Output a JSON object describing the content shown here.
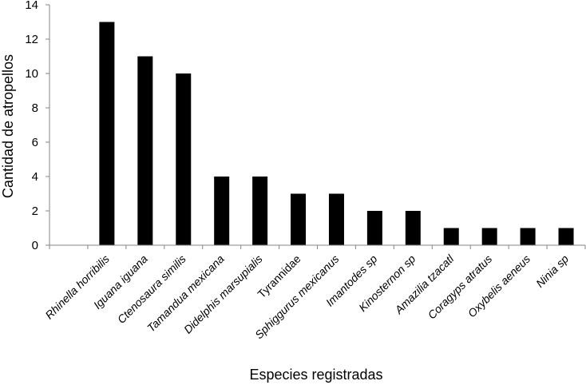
{
  "chart_data": {
    "type": "bar",
    "xlabel": "Especies registradas",
    "ylabel": "Cantidad de atropellos",
    "ylim": [
      0,
      14
    ],
    "yticks": [
      0,
      2,
      4,
      6,
      8,
      10,
      12,
      14
    ],
    "grid": false,
    "legend": "none",
    "bar_color": "#000000",
    "categories": [
      "Rhinella horribilis",
      "Iguana iguana",
      "Ctenosaura similis",
      "Tamandua mexicana",
      "Didelphis marsupialis",
      "Tyrannidae",
      "Sphiggurus mexicanus",
      "Imantodes sp",
      "Kinosternon sp",
      "Amazilia tzacatl",
      "Coragyps atratus",
      "Oxybelis aeneus",
      "Ninia sp"
    ],
    "italic": [
      true,
      true,
      true,
      true,
      true,
      false,
      true,
      true,
      true,
      true,
      true,
      true,
      true
    ],
    "values": [
      13,
      11,
      10,
      4,
      4,
      3,
      3,
      2,
      2,
      1,
      1,
      1,
      1
    ]
  }
}
